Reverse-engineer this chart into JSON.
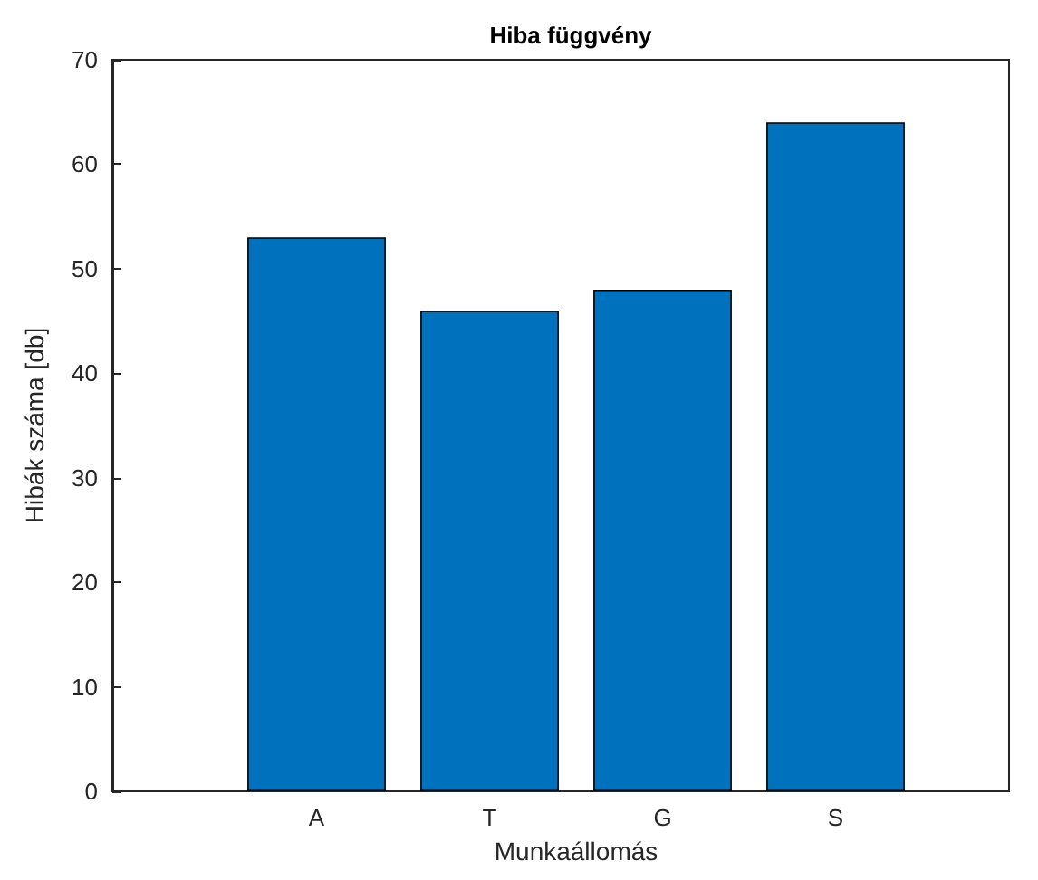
{
  "chart_data": {
    "type": "bar",
    "title": "Hiba függvény",
    "xlabel": "Munkaállomás",
    "ylabel": "Hibák száma [db]",
    "categories": [
      "A",
      "T",
      "G",
      "S"
    ],
    "values": [
      53,
      46,
      48,
      64
    ],
    "color": "#0072bd",
    "ylim": [
      0,
      70
    ],
    "yticks": [
      0,
      10,
      20,
      30,
      40,
      50,
      60,
      70
    ]
  }
}
